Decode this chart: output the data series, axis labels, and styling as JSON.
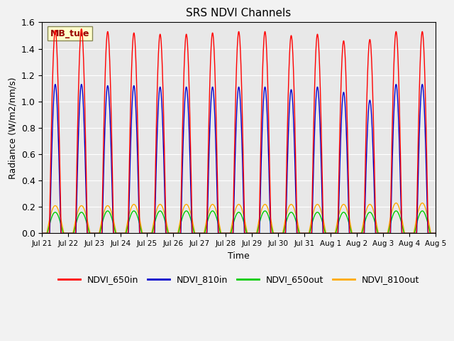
{
  "title": "SRS NDVI Channels",
  "xlabel": "Time",
  "ylabel": "Radiance (W/m2/nm/s)",
  "ylim": [
    0,
    1.6
  ],
  "num_days": 15,
  "peak_variation_650in": [
    1.54,
    1.55,
    1.53,
    1.52,
    1.51,
    1.51,
    1.52,
    1.53,
    1.53,
    1.5,
    1.51,
    1.46,
    1.47,
    1.53,
    1.53
  ],
  "peak_variation_810in": [
    1.13,
    1.13,
    1.12,
    1.12,
    1.11,
    1.11,
    1.11,
    1.11,
    1.11,
    1.09,
    1.11,
    1.07,
    1.01,
    1.13,
    1.13
  ],
  "peak_variation_650out": [
    0.16,
    0.16,
    0.17,
    0.17,
    0.17,
    0.17,
    0.17,
    0.16,
    0.17,
    0.16,
    0.16,
    0.16,
    0.16,
    0.17,
    0.17
  ],
  "peak_variation_810out": [
    0.21,
    0.21,
    0.21,
    0.22,
    0.22,
    0.22,
    0.22,
    0.22,
    0.22,
    0.22,
    0.22,
    0.22,
    0.22,
    0.23,
    0.23
  ],
  "color_650in": "#ff0000",
  "color_810in": "#0000cc",
  "color_650out": "#00cc00",
  "color_810out": "#ffaa00",
  "annotation_text": "MB_tule",
  "annotation_bg": "#ffffcc",
  "annotation_text_color": "#990000",
  "bg_color": "#e8e8e8",
  "grid_color": "#ffffff",
  "tick_labels": [
    "Jul 21",
    "Jul 22",
    "Jul 23",
    "Jul 24",
    "Jul 25",
    "Jul 26",
    "Jul 27",
    "Jul 28",
    "Jul 29",
    "Jul 30",
    "Jul 31",
    "Aug 1",
    "Aug 2",
    "Aug 3",
    "Aug 4",
    "Aug 5"
  ],
  "legend_labels": [
    "NDVI_650in",
    "NDVI_810in",
    "NDVI_650out",
    "NDVI_810out"
  ],
  "fig_width": 6.4,
  "fig_height": 4.8,
  "dpi": 100
}
